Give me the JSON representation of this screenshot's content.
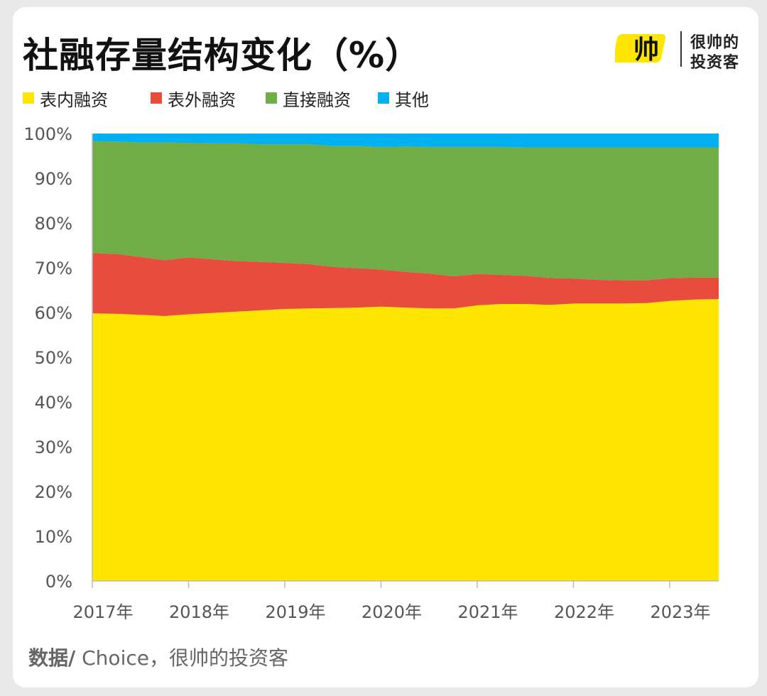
{
  "header": {
    "title": "社融存量结构变化（%）",
    "brand_logo_text": "帅",
    "brand_name_line1": "很帅的",
    "brand_name_line2": "投资客"
  },
  "source": {
    "label": "数据/",
    "text": " Choice，很帅的投资客"
  },
  "colors": {
    "onbalance": "#FFE600",
    "offbalance": "#E84C3D",
    "direct": "#70AD47",
    "other": "#00B0F0",
    "axis": "#BBBBBB",
    "tick_text": "#555555"
  },
  "chart_data": {
    "type": "area",
    "stacked": true,
    "normalized": true,
    "title": "社融存量结构变化（%）",
    "xlabel": "",
    "ylabel": "",
    "ylim": [
      0,
      100
    ],
    "yticks": [
      "0%",
      "10%",
      "20%",
      "30%",
      "40%",
      "50%",
      "60%",
      "70%",
      "80%",
      "90%",
      "100%"
    ],
    "categories": [
      "2017年",
      "2018年",
      "2019年",
      "2020年",
      "2021年",
      "2022年",
      "2023年"
    ],
    "x": [
      2017.0,
      2017.25,
      2017.5,
      2017.75,
      2018.0,
      2018.25,
      2018.5,
      2018.75,
      2019.0,
      2019.25,
      2019.5,
      2019.75,
      2020.0,
      2020.25,
      2020.5,
      2020.75,
      2021.0,
      2021.25,
      2021.5,
      2021.75,
      2022.0,
      2022.25,
      2022.5,
      2022.75,
      2023.0,
      2023.25,
      2023.5
    ],
    "legend_position": "top-left",
    "grid": false,
    "series": [
      {
        "name": "表内融资",
        "values": [
          59.8,
          59.7,
          59.5,
          59.2,
          59.6,
          59.9,
          60.2,
          60.5,
          60.8,
          60.9,
          61.0,
          61.1,
          61.3,
          61.1,
          60.9,
          60.9,
          61.6,
          61.9,
          61.9,
          61.7,
          62.0,
          62.0,
          62.0,
          62.1,
          62.6,
          62.9,
          63.0
        ]
      },
      {
        "name": "表外融资",
        "values": [
          13.5,
          13.4,
          12.9,
          12.5,
          12.7,
          12.0,
          11.3,
          10.8,
          10.3,
          9.9,
          9.2,
          8.8,
          8.3,
          8.0,
          7.8,
          7.2,
          7.0,
          6.5,
          6.3,
          6.0,
          5.6,
          5.3,
          5.2,
          5.1,
          5.1,
          4.9,
          4.8
        ]
      },
      {
        "name": "直接融资",
        "values": [
          25.0,
          25.1,
          25.6,
          26.3,
          25.6,
          25.9,
          26.3,
          26.3,
          26.5,
          26.8,
          27.0,
          27.3,
          27.4,
          28.0,
          28.3,
          28.9,
          28.4,
          28.6,
          28.7,
          29.2,
          29.3,
          29.6,
          29.7,
          29.7,
          29.2,
          29.1,
          29.1
        ]
      },
      {
        "name": "其他",
        "values": [
          1.7,
          1.8,
          2.0,
          2.0,
          2.1,
          2.2,
          2.2,
          2.4,
          2.4,
          2.4,
          2.8,
          2.8,
          3.0,
          2.9,
          3.0,
          3.0,
          3.0,
          3.0,
          3.1,
          3.1,
          3.1,
          3.1,
          3.1,
          3.1,
          3.1,
          3.1,
          3.1
        ]
      }
    ]
  }
}
